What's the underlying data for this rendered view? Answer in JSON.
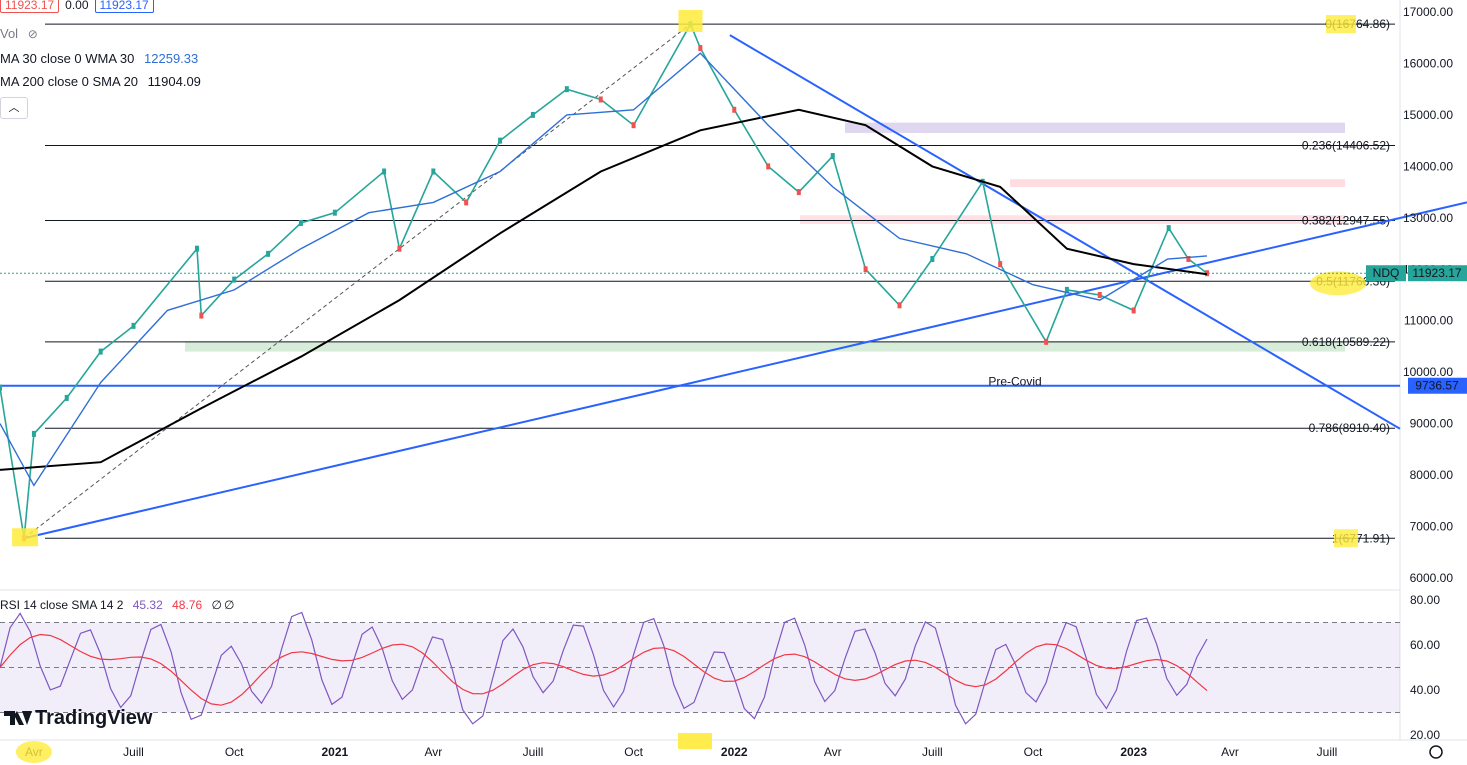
{
  "header": {
    "ohlc_open": "11923.17",
    "ohlc_change": "0.00",
    "ohlc_close": "11923.17",
    "vol_label": "Vol",
    "vol_icon": "eye-crossed-icon",
    "ma30_label": "MA 30 close 0 WMA 30",
    "ma30_value": "12259.33",
    "ma200_label": "MA 200 close 0 SMA 20",
    "ma200_value": "11904.09",
    "collapse_icon": "chevron-up-icon"
  },
  "rsi_legend": {
    "label": "RSI 14 close SMA 14 2",
    "rsi_value": "45.32",
    "sma_value": "48.76",
    "extra1": "∅",
    "extra2": "∅"
  },
  "price_axis": [
    "17000.00",
    "16000.00",
    "15000.00",
    "14000.00",
    "13000.00",
    "12000.00",
    "11000.00",
    "10000.00",
    "9000.00",
    "8000.00",
    "7000.00",
    "6000.00"
  ],
  "rsi_axis": [
    "80.00",
    "60.00",
    "40.00",
    "20.00"
  ],
  "time_axis": [
    "Avr",
    "Juill",
    "Oct",
    "2021",
    "Avr",
    "Juill",
    "Oct",
    "2022",
    "Avr",
    "Juill",
    "Oct",
    "2023",
    "Avr",
    "Juill"
  ],
  "fib_labels": [
    "0(16764.86)",
    "0.236(14406.52)",
    "0.382(12947.55)",
    "0.5(11766.36)",
    "0.618(10589.22)",
    "0.786(8910.40)",
    "1(6771.91)"
  ],
  "price_tags": {
    "ndq_symbol": "NDQ",
    "ndq_value": "11923.17",
    "precovid_value": "9736.57"
  },
  "annotation": "Pre-Covid",
  "branding": "TradingView",
  "settings_icon": "gear-icon",
  "colors": {
    "accent_blue": "#2962ff",
    "ma30": "#2f6fd6",
    "ma200": "#000000",
    "up": "#26a69a",
    "down": "#ef5350",
    "rsi": "#7e57c2",
    "rsi_sma": "#f23645",
    "highlight": "#ffeb3b"
  },
  "chart_data": {
    "type": "line",
    "title": "NDQ",
    "ylim": [
      6000,
      17000
    ],
    "series": [
      {
        "name": "NDQ",
        "values": [
          [
            "2020-03",
            9700
          ],
          [
            "2020-03-23",
            6772
          ],
          [
            "2020-04",
            8800
          ],
          [
            "2020-05",
            9500
          ],
          [
            "2020-06",
            10400
          ],
          [
            "2020-07",
            10900
          ],
          [
            "2020-08-28",
            12400
          ],
          [
            "2020-09",
            11100
          ],
          [
            "2020-10",
            11800
          ],
          [
            "2020-11",
            12300
          ],
          [
            "2020-12",
            12900
          ],
          [
            "2021-01",
            13100
          ],
          [
            "2021-02-15",
            13900
          ],
          [
            "2021-03",
            12400
          ],
          [
            "2021-04",
            13900
          ],
          [
            "2021-05",
            13300
          ],
          [
            "2021-06",
            14500
          ],
          [
            "2021-07",
            15000
          ],
          [
            "2021-08",
            15500
          ],
          [
            "2021-09",
            15300
          ],
          [
            "2021-10",
            14800
          ],
          [
            "2021-11-22",
            16765
          ],
          [
            "2021-12",
            16300
          ],
          [
            "2022-01",
            15100
          ],
          [
            "2022-02",
            14000
          ],
          [
            "2022-03",
            13500
          ],
          [
            "2022-04",
            14200
          ],
          [
            "2022-05",
            12000
          ],
          [
            "2022-06",
            11300
          ],
          [
            "2022-07",
            12200
          ],
          [
            "2022-08-16",
            13700
          ],
          [
            "2022-09",
            12100
          ],
          [
            "2022-10-13",
            10590
          ],
          [
            "2022-11",
            11600
          ],
          [
            "2022-12",
            11500
          ],
          [
            "2023-01",
            11200
          ],
          [
            "2023-02-02",
            12800
          ],
          [
            "2023-02-20",
            12200
          ],
          [
            "2023-03-09",
            11923
          ]
        ]
      }
    ],
    "rsi": {
      "overbought": 70,
      "oversold": 30,
      "last": 45.32,
      "sma_last": 48.76
    },
    "fib_levels": {
      "0": 16764.86,
      "0.236": 14406.52,
      "0.382": 12947.55,
      "0.5": 11766.36,
      "0.618": 10589.22,
      "0.786": 8910.4,
      "1": 6771.91
    },
    "horizontal_levels": {
      "Pre-Covid": 9736.57
    }
  }
}
